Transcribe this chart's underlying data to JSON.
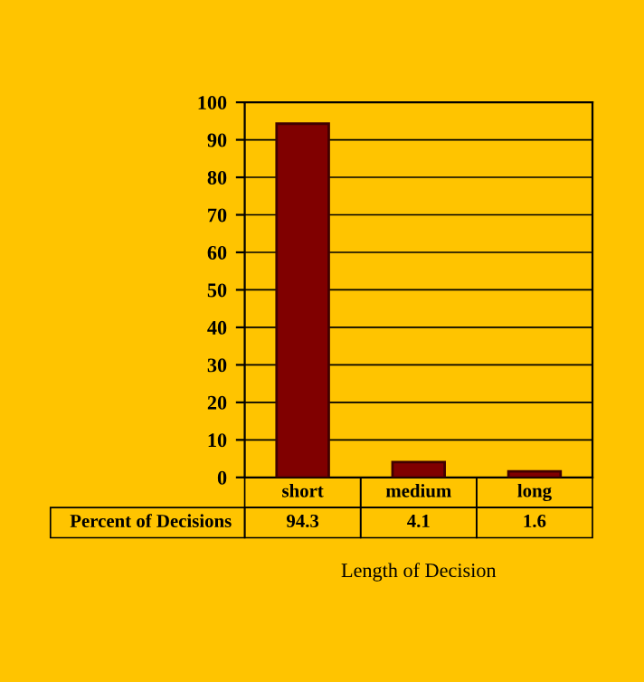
{
  "chart_data": {
    "type": "bar",
    "xlabel": "Length of Decision",
    "categories": [
      "short",
      "medium",
      "long"
    ],
    "series": [
      {
        "name": "Percent of Decisions",
        "color": "#800000",
        "values": [
          94.3,
          4.1,
          1.6
        ]
      }
    ],
    "ylim": [
      0,
      100
    ],
    "yticks": [
      0,
      10,
      20,
      30,
      40,
      50,
      60,
      70,
      80,
      90,
      100
    ],
    "grid": "y",
    "data_labels": true,
    "legend": false
  }
}
